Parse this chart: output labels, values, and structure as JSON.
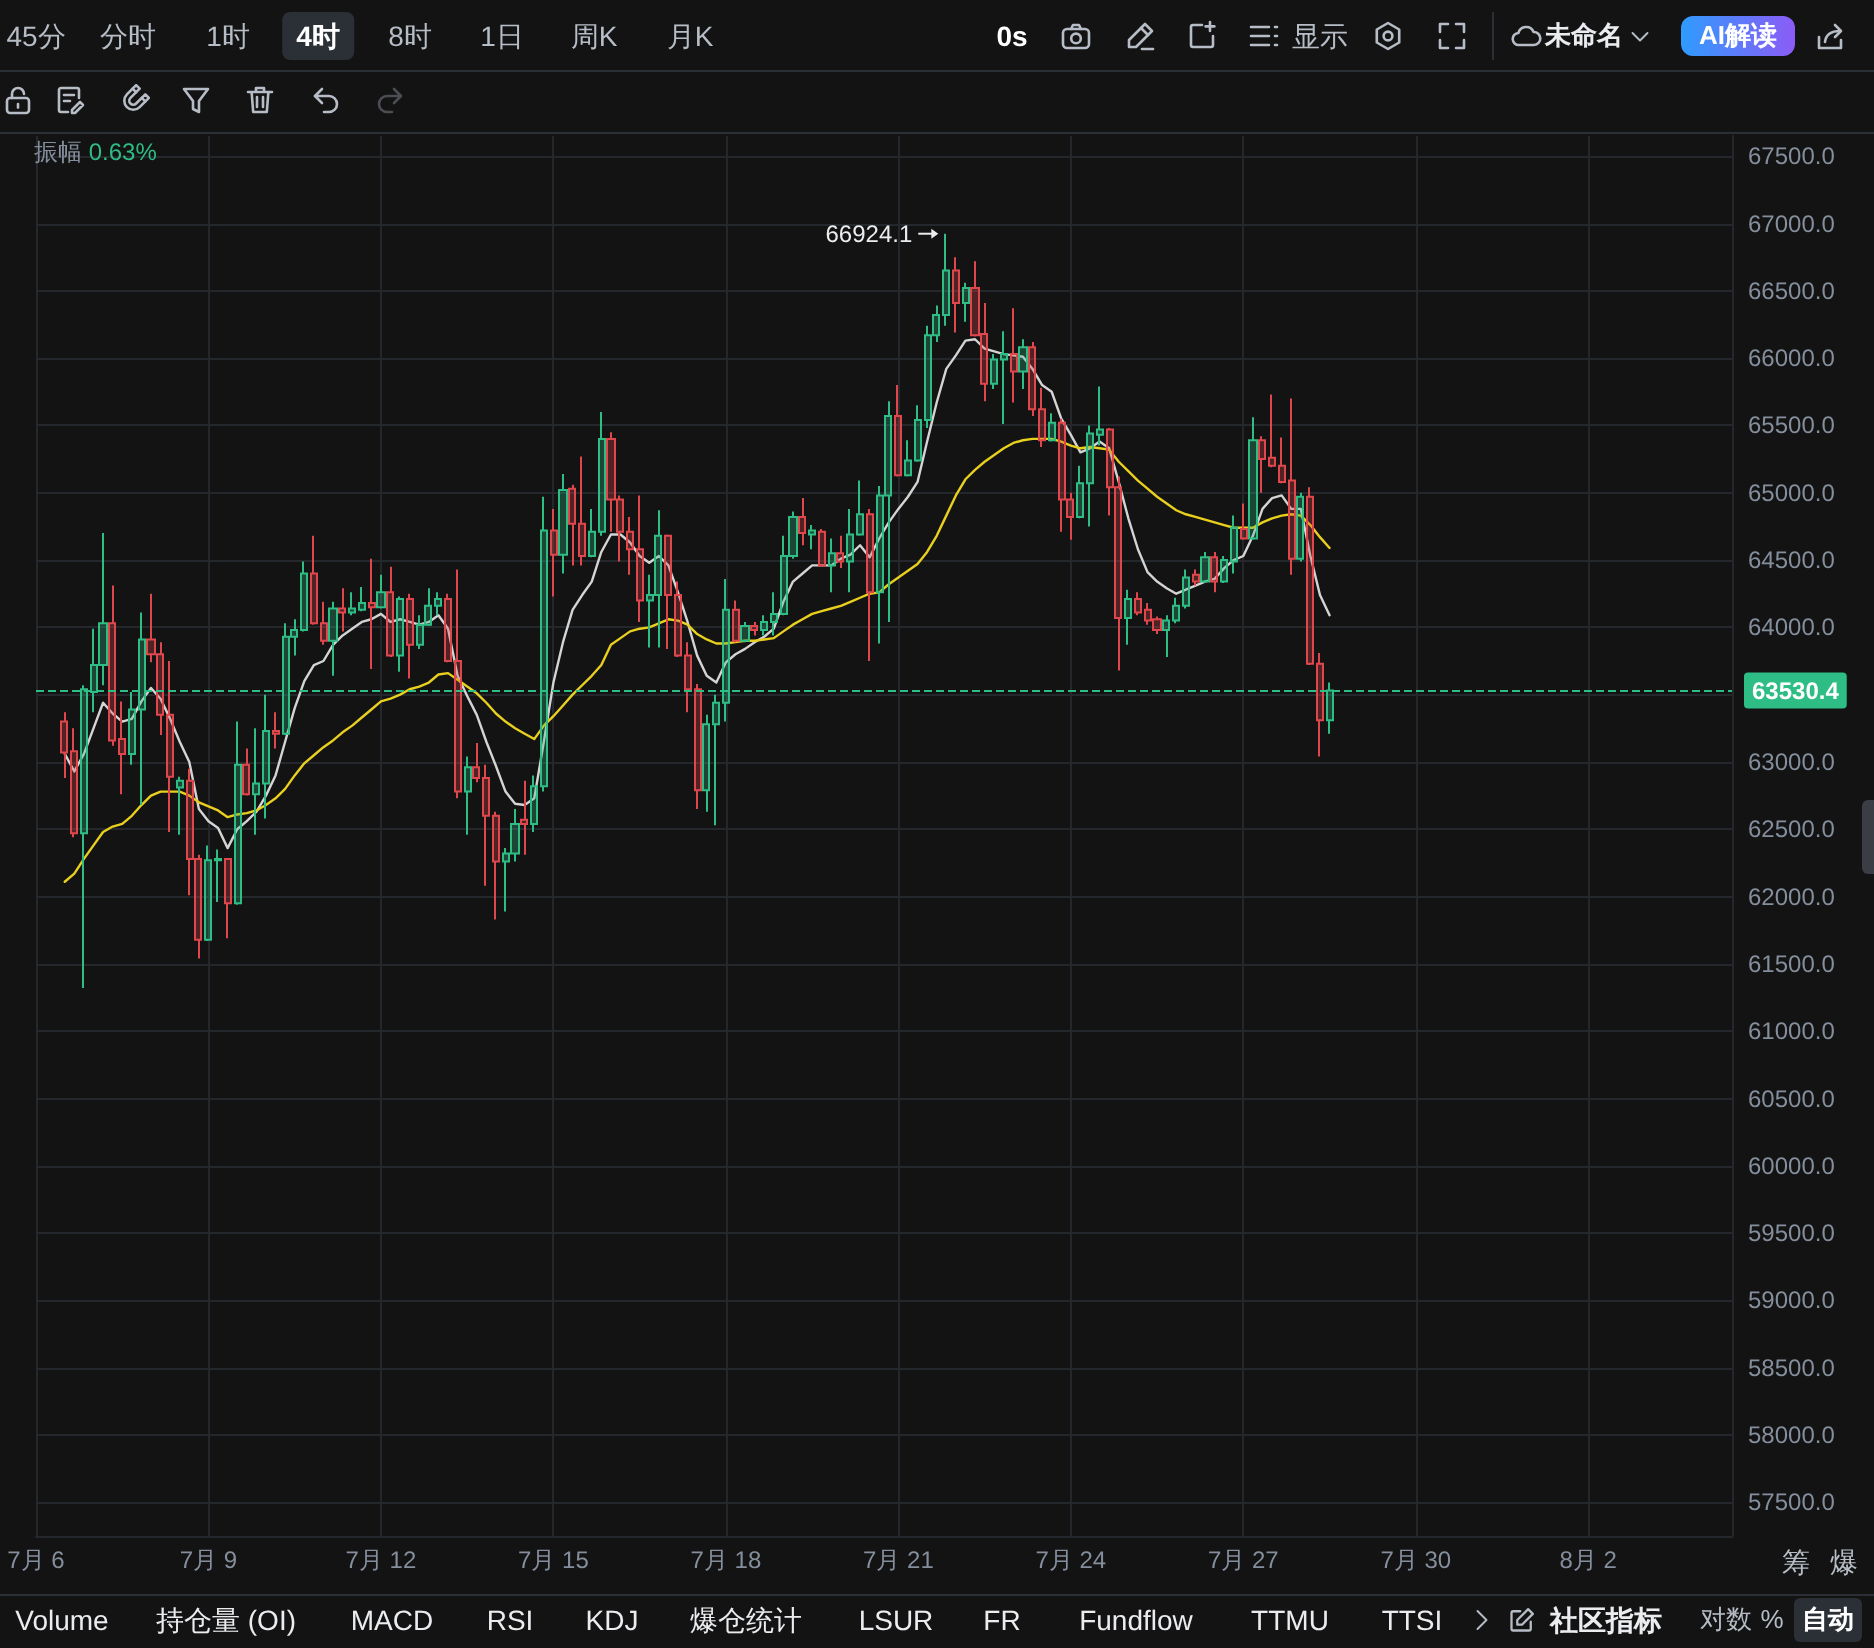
{
  "chart_data": {
    "type": "candlestick",
    "categories": [
      "7月 6",
      null,
      null,
      null,
      null,
      null,
      null,
      null,
      null,
      null,
      null,
      null,
      null,
      null,
      null,
      null,
      null,
      null,
      "7月 9",
      null,
      null,
      null,
      null,
      null,
      null,
      null,
      null,
      null,
      null,
      null,
      null,
      null,
      null,
      null,
      null,
      null,
      "7月 12",
      null,
      null,
      null,
      null,
      null,
      null,
      null,
      null,
      null,
      null,
      null,
      null,
      null,
      null,
      null,
      null,
      null,
      "7月 15",
      null,
      null,
      null,
      null,
      null,
      null,
      null,
      null,
      null,
      null,
      null,
      null,
      null,
      null,
      null,
      null,
      null,
      "7月 18",
      null,
      null,
      null,
      null,
      null,
      null,
      null,
      null,
      null,
      null,
      null,
      null,
      null,
      null,
      null,
      null,
      null,
      "7月 21",
      null,
      null,
      null,
      null,
      null,
      null,
      null,
      null,
      null,
      null,
      null,
      null,
      null,
      null,
      null,
      null,
      null,
      "7月 24",
      null,
      null,
      null,
      null,
      null,
      null,
      null,
      null,
      null,
      null,
      null,
      null,
      null,
      null,
      null,
      null,
      null,
      "7月 27",
      null,
      null,
      null,
      null,
      null,
      null,
      null,
      null,
      null,
      null,
      null,
      null,
      null,
      null,
      null,
      null,
      null,
      "7月 30",
      null,
      null,
      null,
      null,
      null,
      null,
      null,
      null,
      null,
      null,
      null,
      null,
      null,
      null,
      null,
      null,
      null,
      "8月 2",
      null,
      null,
      null,
      null,
      null,
      null,
      null,
      null,
      null,
      null,
      null,
      null,
      null,
      null,
      null
    ],
    "ohlc": [
      null,
      null,
      null,
      [
        63300,
        63370,
        62880,
        63070
      ],
      [
        63080,
        63250,
        62440,
        62470
      ],
      [
        62470,
        63570,
        61320,
        63540
      ],
      [
        63520,
        63990,
        63370,
        63720
      ],
      [
        63720,
        64700,
        63570,
        64030
      ],
      [
        64030,
        64310,
        63120,
        63160
      ],
      [
        63170,
        63450,
        62760,
        63060
      ],
      [
        63060,
        63520,
        62980,
        63390
      ],
      [
        63390,
        64110,
        62680,
        63910
      ],
      [
        63910,
        64250,
        63740,
        63800
      ],
      [
        63800,
        63890,
        63200,
        63350
      ],
      [
        63350,
        63750,
        62480,
        62890
      ],
      [
        62810,
        62890,
        62460,
        62860
      ],
      [
        62860,
        62950,
        62010,
        62280
      ],
      [
        62280,
        62310,
        61540,
        61680
      ],
      [
        61680,
        62380,
        61670,
        62270
      ],
      [
        62270,
        62350,
        61960,
        62280
      ],
      [
        62280,
        62280,
        61690,
        61950
      ],
      [
        61950,
        63300,
        61940,
        62980
      ],
      [
        62980,
        63100,
        62750,
        62760
      ],
      [
        62760,
        63250,
        62460,
        62840
      ],
      [
        62840,
        63500,
        62580,
        63230
      ],
      [
        63230,
        63370,
        63100,
        63210
      ],
      [
        63210,
        64030,
        63200,
        63930
      ],
      [
        63930,
        64060,
        63790,
        63980
      ],
      [
        63980,
        64490,
        63970,
        64400
      ],
      [
        64400,
        64680,
        64020,
        64030
      ],
      [
        64030,
        64190,
        63870,
        63900
      ],
      [
        63900,
        64190,
        63640,
        64140
      ],
      [
        64140,
        64290,
        63970,
        64110
      ],
      [
        64110,
        64260,
        64090,
        64140
      ],
      [
        64130,
        64300,
        64120,
        64180
      ],
      [
        64180,
        64510,
        63690,
        64150
      ],
      [
        64150,
        64390,
        64140,
        64260
      ],
      [
        64260,
        64450,
        63780,
        63790
      ],
      [
        63790,
        64230,
        63670,
        64210
      ],
      [
        64210,
        64250,
        63620,
        63870
      ],
      [
        63870,
        64090,
        63840,
        64020
      ],
      [
        64020,
        64290,
        64010,
        64160
      ],
      [
        64160,
        64260,
        64090,
        64210
      ],
      [
        64210,
        64250,
        63740,
        63750
      ],
      [
        63750,
        64430,
        62730,
        62780
      ],
      [
        62780,
        63040,
        62460,
        62960
      ],
      [
        62960,
        63140,
        62850,
        62880
      ],
      [
        62880,
        62980,
        62080,
        62600
      ],
      [
        62600,
        62630,
        61830,
        62260
      ],
      [
        62260,
        62360,
        61890,
        62320
      ],
      [
        62320,
        62650,
        62260,
        62540
      ],
      [
        62570,
        62860,
        62310,
        62540
      ],
      [
        62540,
        62900,
        62480,
        62820
      ],
      [
        62820,
        64970,
        62780,
        64720
      ],
      [
        64720,
        64880,
        64230,
        64540
      ],
      [
        64540,
        65140,
        64400,
        65020
      ],
      [
        65030,
        65060,
        64460,
        64770
      ],
      [
        64770,
        65270,
        64460,
        64530
      ],
      [
        64530,
        64880,
        64520,
        64710
      ],
      [
        64710,
        65600,
        64680,
        65400
      ],
      [
        65400,
        65450,
        64710,
        64950
      ],
      [
        64950,
        64980,
        64490,
        64710
      ],
      [
        64710,
        64820,
        64390,
        64580
      ],
      [
        64580,
        64980,
        64040,
        64200
      ],
      [
        64200,
        64390,
        63850,
        64240
      ],
      [
        64240,
        64870,
        63850,
        64680
      ],
      [
        64680,
        64690,
        63840,
        64240
      ],
      [
        64240,
        64340,
        63780,
        63790
      ],
      [
        63790,
        63890,
        63370,
        63540
      ],
      [
        63540,
        63580,
        62650,
        62790
      ],
      [
        62790,
        63350,
        62630,
        63280
      ],
      [
        63280,
        63500,
        62530,
        63440
      ],
      [
        63440,
        64360,
        63300,
        64130
      ],
      [
        64130,
        64200,
        63890,
        63900
      ],
      [
        63900,
        64040,
        63890,
        64010
      ],
      [
        64010,
        64040,
        63940,
        63980
      ],
      [
        63980,
        64090,
        63940,
        64040
      ],
      [
        64040,
        64260,
        63940,
        64100
      ],
      [
        64100,
        64680,
        64090,
        64530
      ],
      [
        64530,
        64860,
        64510,
        64820
      ],
      [
        64820,
        64960,
        64610,
        64700
      ],
      [
        64690,
        64760,
        64580,
        64720
      ],
      [
        64710,
        64730,
        64450,
        64460
      ],
      [
        64460,
        64660,
        64260,
        64550
      ],
      [
        64550,
        64680,
        64440,
        64490
      ],
      [
        64490,
        64880,
        64260,
        64690
      ],
      [
        64690,
        65090,
        64680,
        64840
      ],
      [
        64840,
        64880,
        63750,
        64260
      ],
      [
        64260,
        65050,
        63880,
        64980
      ],
      [
        64980,
        65680,
        64040,
        65570
      ],
      [
        65570,
        65800,
        65120,
        65130
      ],
      [
        65130,
        65390,
        65120,
        65240
      ],
      [
        65240,
        65650,
        65230,
        65540
      ],
      [
        65540,
        66240,
        65480,
        66170
      ],
      [
        66170,
        66390,
        66120,
        66320
      ],
      [
        66320,
        66924.1,
        66240,
        66650
      ],
      [
        66650,
        66750,
        66190,
        66410
      ],
      [
        66410,
        66560,
        66270,
        66520
      ],
      [
        66520,
        66720,
        66160,
        66170
      ],
      [
        66180,
        66410,
        65680,
        65810
      ],
      [
        65810,
        66030,
        65770,
        65990
      ],
      [
        65990,
        66200,
        65510,
        66030
      ],
      [
        66030,
        66370,
        65670,
        65900
      ],
      [
        65900,
        66140,
        65770,
        66080
      ],
      [
        66080,
        66120,
        65570,
        65620
      ],
      [
        65620,
        65780,
        65340,
        65390
      ],
      [
        65390,
        65590,
        65380,
        65520
      ],
      [
        65520,
        65550,
        64710,
        64950
      ],
      [
        64950,
        65000,
        64650,
        64820
      ],
      [
        64820,
        65200,
        64810,
        65070
      ],
      [
        65070,
        65500,
        64750,
        65440
      ],
      [
        65430,
        65790,
        65350,
        65470
      ],
      [
        65470,
        65480,
        64830,
        65040
      ],
      [
        65040,
        65120,
        63680,
        64070
      ],
      [
        64070,
        64280,
        63870,
        64210
      ],
      [
        64210,
        64260,
        64090,
        64110
      ],
      [
        64130,
        64180,
        64020,
        64050
      ],
      [
        64060,
        64080,
        63950,
        63980
      ],
      [
        63980,
        64090,
        63780,
        64050
      ],
      [
        64050,
        64220,
        64030,
        64160
      ],
      [
        64160,
        64430,
        64140,
        64370
      ],
      [
        64390,
        64430,
        64310,
        64340
      ],
      [
        64340,
        64560,
        64330,
        64520
      ],
      [
        64520,
        64560,
        64260,
        64340
      ],
      [
        64340,
        64530,
        64330,
        64500
      ],
      [
        64490,
        64830,
        64400,
        64740
      ],
      [
        64730,
        64920,
        64650,
        64660
      ],
      [
        64660,
        65560,
        64650,
        65390
      ],
      [
        65390,
        65420,
        65000,
        65250
      ],
      [
        65260,
        65730,
        65190,
        65200
      ],
      [
        65200,
        65410,
        65070,
        65080
      ],
      [
        65090,
        65700,
        64390,
        64510
      ],
      [
        64510,
        65000,
        64490,
        64970
      ],
      [
        64970,
        65040,
        63720,
        63730
      ],
      [
        63730,
        63810,
        63040,
        63310
      ],
      [
        63310,
        63590,
        63210,
        63530.4
      ],
      null,
      null,
      null,
      null,
      null,
      null,
      null,
      null,
      null,
      null,
      null,
      null,
      null,
      null,
      null,
      null,
      null,
      null,
      null,
      null,
      null,
      null,
      null,
      null,
      null,
      null,
      null,
      null,
      null,
      null,
      null,
      null,
      null,
      null,
      null,
      null,
      null,
      null,
      null,
      null,
      null,
      null
    ],
    "colors": [
      null,
      null,
      null,
      "#e0474c",
      "#e0474c",
      "#2ebd85",
      "#2ebd85",
      "#2ebd85",
      "#e0474c",
      "#e0474c",
      "#2ebd85",
      "#2ebd85",
      "#e0474c",
      "#e0474c",
      "#e0474c",
      "#2ebd85",
      "#e0474c",
      "#e0474c",
      "#2ebd85",
      "#2ebd85",
      "#e0474c",
      "#2ebd85",
      "#e0474c",
      "#2ebd85",
      "#2ebd85",
      "#e0474c",
      "#2ebd85",
      "#2ebd85",
      "#2ebd85",
      "#e0474c",
      "#e0474c",
      "#2ebd85",
      "#e0474c",
      "#2ebd85",
      "#2ebd85",
      "#e0474c",
      "#2ebd85",
      "#e0474c",
      "#2ebd85",
      "#e0474c",
      "#2ebd85",
      "#2ebd85",
      "#2ebd85",
      "#e0474c",
      "#e0474c",
      "#2ebd85",
      "#e0474c",
      "#e0474c",
      "#e0474c",
      "#2ebd85",
      "#2ebd85",
      "#e0474c",
      "#2ebd85",
      "#2ebd85",
      "#e0474c",
      "#2ebd85",
      "#e0474c",
      "#e0474c",
      "#2ebd85",
      "#2ebd85",
      "#e0474c",
      "#e0474c",
      "#e0474c",
      "#e0474c",
      "#2ebd85",
      "#2ebd85",
      "#e0474c",
      "#e0474c",
      "#e0474c",
      "#e0474c",
      "#2ebd85",
      "#2ebd85",
      "#2ebd85",
      "#e0474c",
      "#2ebd85",
      "#e0474c",
      "#2ebd85",
      "#2ebd85",
      "#2ebd85",
      "#2ebd85",
      "#e0474c",
      "#2ebd85",
      "#e0474c",
      "#2ebd85",
      "#e0474c",
      "#2ebd85",
      "#2ebd85",
      "#e0474c",
      "#2ebd85",
      "#2ebd85",
      "#e0474c",
      "#2ebd85",
      "#2ebd85",
      "#2ebd85",
      "#2ebd85",
      "#2ebd85",
      "#e0474c",
      "#2ebd85",
      "#e0474c",
      "#e0474c",
      "#2ebd85",
      "#2ebd85",
      "#e0474c",
      "#2ebd85",
      "#e0474c",
      "#e0474c",
      "#2ebd85",
      "#e0474c",
      "#e0474c",
      "#2ebd85",
      "#2ebd85",
      "#2ebd85",
      "#e0474c",
      "#e0474c",
      "#2ebd85",
      "#e0474c",
      "#e0474c",
      "#e0474c",
      "#2ebd85",
      "#2ebd85",
      "#2ebd85",
      "#e0474c",
      "#2ebd85",
      "#e0474c",
      "#2ebd85",
      "#2ebd85",
      "#e0474c",
      "#2ebd85",
      "#e0474c",
      "#e0474c",
      "#e0474c",
      "#e0474c",
      "#2ebd85",
      "#e0474c",
      "#e0474c",
      "#2ebd85",
      null,
      null,
      null,
      null,
      null,
      null,
      null,
      null,
      null,
      null,
      null,
      null,
      null,
      null,
      null,
      null,
      null,
      null,
      null,
      null,
      null,
      null,
      null,
      null,
      null,
      null,
      null,
      null,
      null,
      null,
      null,
      null,
      null,
      null,
      null,
      null,
      null,
      null,
      null,
      null,
      null,
      null
    ],
    "series": [
      {
        "type": "line",
        "color": "#d4d4d4",
        "values": [
          null,
          null,
          null,
          63060,
          62930,
          63060,
          63250,
          63440,
          63360,
          63300,
          63320,
          63450,
          63550,
          63470,
          63320,
          63150,
          63000,
          62650,
          62560,
          62510,
          62360,
          62500,
          62560,
          62630,
          62750,
          62900,
          63150,
          63400,
          63600,
          63720,
          63750,
          63870,
          63940,
          63990,
          64040,
          64060,
          64100,
          64040,
          64060,
          64040,
          64020,
          64040,
          64090,
          63990,
          63640,
          63490,
          63350,
          63150,
          62970,
          62780,
          62690,
          62680,
          62730,
          63150,
          63590,
          63890,
          64130,
          64240,
          64340,
          64560,
          64690,
          64690,
          64630,
          64530,
          64480,
          64530,
          64460,
          64260,
          64040,
          63790,
          63640,
          63590,
          63740,
          63800,
          63840,
          63890,
          63930,
          63990,
          64190,
          64340,
          64400,
          64460,
          64460,
          64460,
          64510,
          64540,
          64610,
          64520,
          64660,
          64780,
          64880,
          64970,
          65080,
          65380,
          65670,
          65920,
          66020,
          66130,
          66140,
          66070,
          66050,
          66030,
          66020,
          66010,
          65920,
          65800,
          65750,
          65550,
          65430,
          65300,
          65330,
          65380,
          65330,
          65080,
          64810,
          64580,
          64410,
          64340,
          64290,
          64250,
          64280,
          64310,
          64340,
          64360,
          64440,
          64500,
          64530,
          64680,
          64880,
          64960,
          64980,
          64880,
          64880,
          64530,
          64240,
          64090,
          null,
          null,
          null,
          null,
          null,
          null,
          null,
          null,
          null,
          null,
          null,
          null,
          null,
          null,
          null,
          null,
          null,
          null,
          null,
          null,
          null,
          null,
          null,
          null,
          null,
          null,
          null,
          null,
          null,
          null,
          null,
          null,
          null,
          null,
          null,
          null,
          null,
          null,
          null,
          null,
          null,
          null
        ]
      },
      {
        "type": "line",
        "color": "#e9cf1e",
        "values": [
          null,
          null,
          null,
          62110,
          62170,
          62280,
          62380,
          62480,
          62520,
          62540,
          62600,
          62680,
          62750,
          62780,
          62780,
          62780,
          62750,
          62700,
          62670,
          62640,
          62590,
          62610,
          62620,
          62640,
          62680,
          62730,
          62800,
          62900,
          62990,
          63050,
          63110,
          63160,
          63220,
          63270,
          63330,
          63390,
          63450,
          63470,
          63500,
          63540,
          63560,
          63590,
          63650,
          63660,
          63610,
          63560,
          63510,
          63440,
          63360,
          63300,
          63250,
          63210,
          63170,
          63270,
          63340,
          63420,
          63500,
          63570,
          63640,
          63720,
          63870,
          63920,
          63970,
          63990,
          64000,
          64030,
          64060,
          64050,
          64020,
          63950,
          63910,
          63880,
          63880,
          63890,
          63900,
          63900,
          63910,
          63920,
          63970,
          64020,
          64060,
          64100,
          64120,
          64140,
          64160,
          64190,
          64220,
          64250,
          64260,
          64320,
          64370,
          64420,
          64470,
          64560,
          64680,
          64830,
          64980,
          65100,
          65170,
          65230,
          65280,
          65330,
          65370,
          65390,
          65400,
          65400,
          65400,
          65380,
          65350,
          65330,
          65340,
          65330,
          65320,
          65230,
          65160,
          65090,
          65030,
          64970,
          64920,
          64870,
          64840,
          64820,
          64800,
          64780,
          64760,
          64740,
          64740,
          64740,
          64780,
          64810,
          64830,
          64840,
          64830,
          64760,
          64670,
          64590,
          null,
          null,
          null,
          null,
          null,
          null,
          null,
          null,
          null,
          null,
          null,
          null,
          null,
          null,
          null,
          null,
          null,
          null,
          null,
          null,
          null,
          null,
          null,
          null,
          null,
          null,
          null,
          null,
          null,
          null,
          null,
          null,
          null,
          null,
          null,
          null,
          null,
          null,
          null,
          null,
          null,
          null
        ]
      }
    ],
    "ylim": [
      57250,
      67650
    ],
    "yticks": [
      {
        "value": 57500,
        "label": "57500.0"
      },
      {
        "value": 58000,
        "label": "58000.0"
      },
      {
        "value": 58500,
        "label": "58500.0"
      },
      {
        "value": 59000,
        "label": "59000.0"
      },
      {
        "value": 59500,
        "label": "59500.0"
      },
      {
        "value": 60000,
        "label": "60000.0"
      },
      {
        "value": 60500,
        "label": "60500.0"
      },
      {
        "value": 61000,
        "label": "61000.0"
      },
      {
        "value": 61500,
        "label": "61500.0"
      },
      {
        "value": 62000,
        "label": "62000.0"
      },
      {
        "value": 62500,
        "label": "62500.0"
      },
      {
        "value": 63000,
        "label": "63000.0"
      },
      {
        "value": 63500,
        "label": null
      },
      {
        "value": 64000,
        "label": "64000.0"
      },
      {
        "value": 64500,
        "label": "64500.0"
      },
      {
        "value": 65000,
        "label": "65000.0"
      },
      {
        "value": 65500,
        "label": "65500.0"
      },
      {
        "value": 66000,
        "label": "66000.0"
      },
      {
        "value": 66500,
        "label": "66500.0"
      },
      {
        "value": 67000,
        "label": "67000.0"
      },
      {
        "value": 67500,
        "label": "67500.0"
      }
    ],
    "ref_lines": [
      {
        "axis": "y",
        "value": 63530.4,
        "label": "63530.4",
        "color": "#2ebd85",
        "line_style": "dashed"
      }
    ],
    "grid": true,
    "annotations": [
      "66924.1",
      "振幅 0.63%",
      "45分",
      "分时",
      "1时",
      "4时",
      "8时",
      "1日",
      "周K",
      "月K",
      "0s",
      "显示",
      "未命名",
      "AI解读",
      "Volume",
      "持仓量 (OI)",
      "MACD",
      "RSI",
      "KDJ",
      "爆仓统计",
      "LSUR",
      "FR",
      "Fundflow",
      "TTMU",
      "TTSI",
      "社区指标",
      "对数",
      "%",
      "自动",
      "筹",
      "爆"
    ]
  }
}
